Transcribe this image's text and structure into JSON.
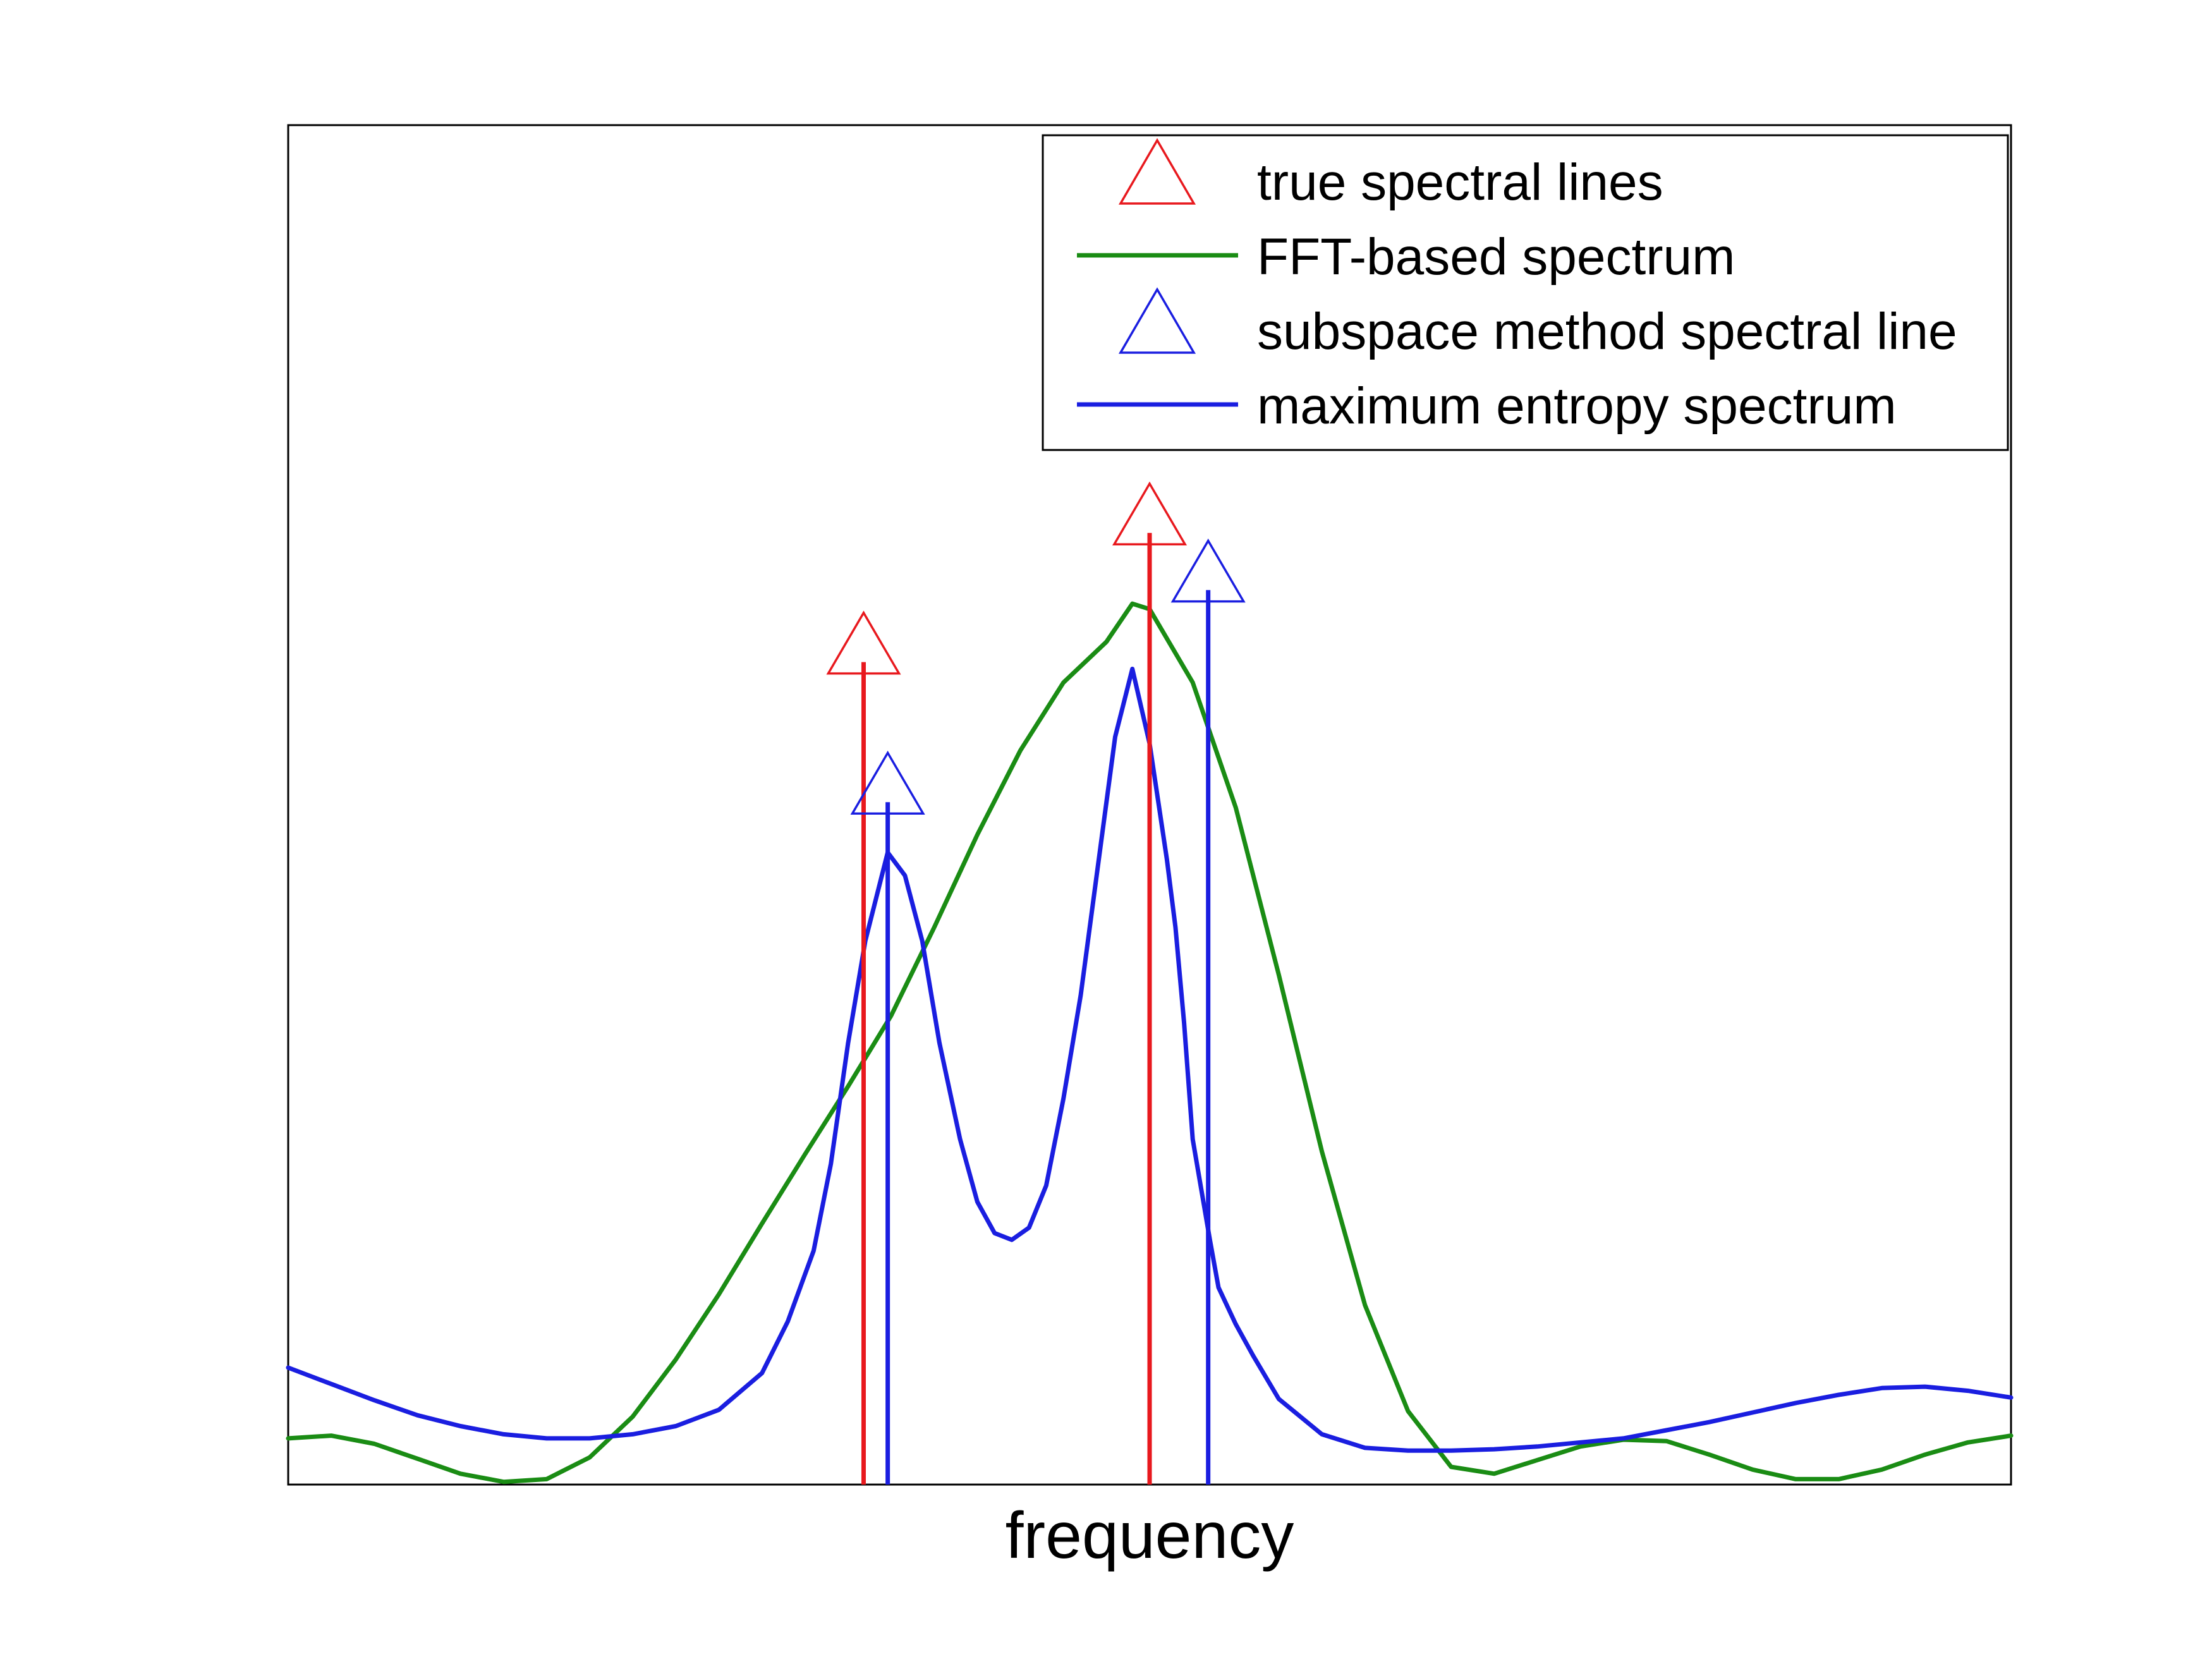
{
  "chart_data": {
    "type": "line",
    "title": "",
    "xlabel": "frequency",
    "ylabel": "",
    "xlim": [
      0,
      1
    ],
    "ylim": [
      0,
      1
    ],
    "grid": false,
    "ticks_shown": false,
    "legend": {
      "placement": "top-right",
      "entries": [
        {
          "label": "true spectral lines",
          "kind": "triangle-marker",
          "color": "#e8191e"
        },
        {
          "label": "FFT-based spectrum",
          "kind": "line",
          "color": "#1a8c14"
        },
        {
          "label": "subspace method spectral line",
          "kind": "triangle-marker",
          "color": "#1a1ee0"
        },
        {
          "label": "maximum entropy spectrum",
          "kind": "line",
          "color": "#1a1ee0"
        }
      ]
    },
    "series": [
      {
        "name": "true spectral lines",
        "type": "stem",
        "marker": "triangle",
        "color": "#e8191e",
        "x": [
          0.334,
          0.5
        ],
        "y": [
          0.605,
          0.7
        ]
      },
      {
        "name": "subspace method spectral line",
        "type": "stem",
        "marker": "triangle",
        "color": "#1a1ee0",
        "x": [
          0.348,
          0.534
        ],
        "y": [
          0.502,
          0.658
        ]
      },
      {
        "name": "FFT-based spectrum",
        "type": "line",
        "color": "#1a8c14",
        "x": [
          0.0,
          0.025,
          0.05,
          0.075,
          0.1,
          0.125,
          0.15,
          0.175,
          0.2,
          0.225,
          0.25,
          0.275,
          0.3,
          0.325,
          0.35,
          0.375,
          0.4,
          0.425,
          0.45,
          0.475,
          0.49,
          0.5,
          0.525,
          0.55,
          0.575,
          0.6,
          0.625,
          0.65,
          0.675,
          0.7,
          0.725,
          0.75,
          0.775,
          0.8,
          0.825,
          0.85,
          0.875,
          0.9,
          0.925,
          0.95,
          0.975,
          1.0
        ],
        "y": [
          0.034,
          0.036,
          0.03,
          0.019,
          0.008,
          0.002,
          0.004,
          0.02,
          0.05,
          0.092,
          0.14,
          0.192,
          0.243,
          0.293,
          0.345,
          0.41,
          0.478,
          0.54,
          0.59,
          0.62,
          0.648,
          0.644,
          0.59,
          0.498,
          0.375,
          0.245,
          0.132,
          0.054,
          0.013,
          0.008,
          0.018,
          0.028,
          0.033,
          0.032,
          0.022,
          0.011,
          0.004,
          0.004,
          0.011,
          0.022,
          0.031,
          0.036
        ]
      },
      {
        "name": "maximum entropy spectrum",
        "type": "line",
        "color": "#1a1ee0",
        "x": [
          0.0,
          0.025,
          0.05,
          0.075,
          0.1,
          0.125,
          0.15,
          0.175,
          0.2,
          0.225,
          0.25,
          0.275,
          0.29,
          0.305,
          0.315,
          0.325,
          0.335,
          0.348,
          0.358,
          0.368,
          0.378,
          0.39,
          0.4,
          0.41,
          0.42,
          0.43,
          0.44,
          0.45,
          0.46,
          0.47,
          0.48,
          0.49,
          0.5,
          0.51,
          0.515,
          0.52,
          0.525,
          0.535,
          0.54,
          0.55,
          0.56,
          0.575,
          0.6,
          0.625,
          0.65,
          0.675,
          0.7,
          0.725,
          0.75,
          0.775,
          0.8,
          0.825,
          0.85,
          0.875,
          0.9,
          0.925,
          0.95,
          0.975,
          1.0
        ],
        "y": [
          0.086,
          0.074,
          0.062,
          0.051,
          0.043,
          0.037,
          0.034,
          0.034,
          0.037,
          0.043,
          0.055,
          0.082,
          0.12,
          0.172,
          0.236,
          0.325,
          0.4,
          0.465,
          0.448,
          0.4,
          0.325,
          0.254,
          0.208,
          0.185,
          0.18,
          0.189,
          0.22,
          0.284,
          0.36,
          0.455,
          0.55,
          0.6,
          0.545,
          0.46,
          0.41,
          0.34,
          0.254,
          0.18,
          0.145,
          0.118,
          0.095,
          0.063,
          0.037,
          0.027,
          0.025,
          0.025,
          0.026,
          0.028,
          0.031,
          0.034,
          0.04,
          0.046,
          0.053,
          0.06,
          0.066,
          0.071,
          0.072,
          0.069,
          0.064
        ]
      }
    ]
  }
}
